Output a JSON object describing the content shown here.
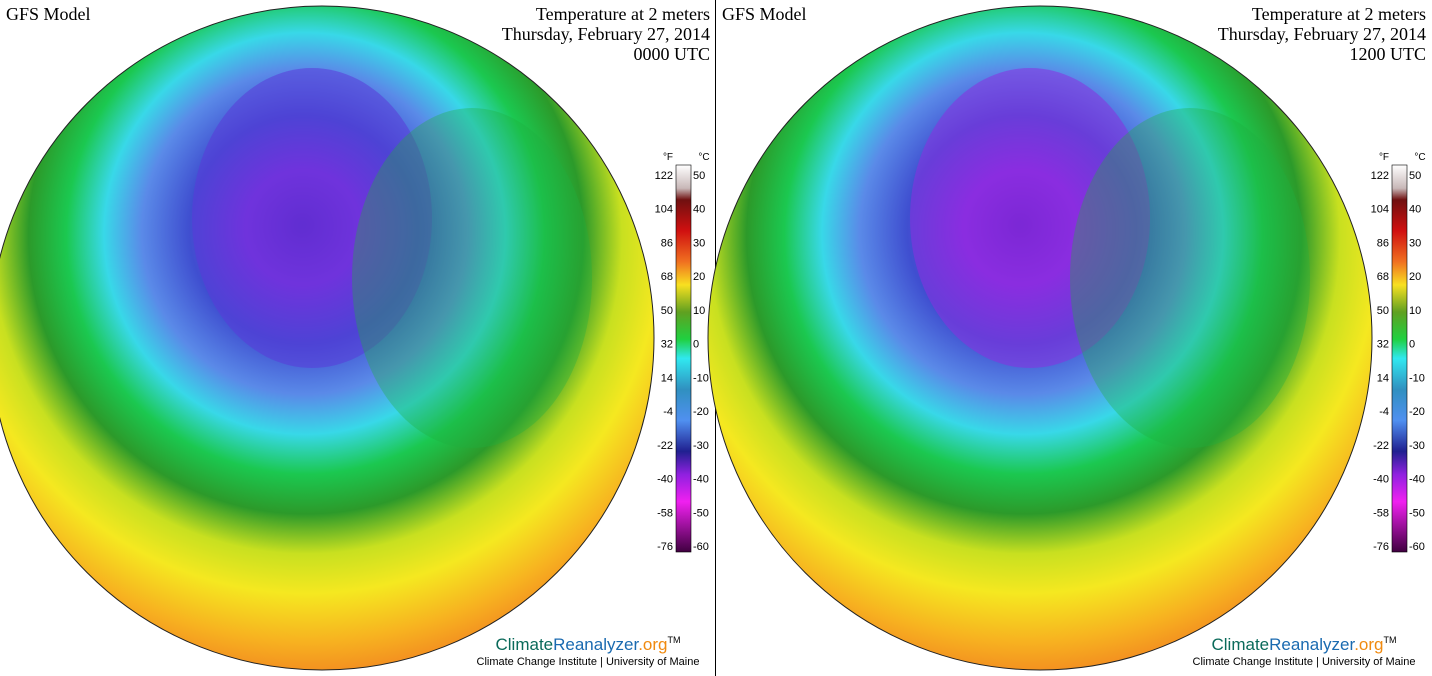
{
  "panels": [
    {
      "model": "GFS Model",
      "title": [
        "Temperature at 2 meters",
        "Thursday, February 27, 2014",
        "0000 UTC"
      ],
      "legend": {
        "unit_f": "°F",
        "unit_c": "°C",
        "ticks_f": [
          122,
          104,
          86,
          68,
          50,
          32,
          14,
          -4,
          -22,
          -40,
          -58,
          -76
        ],
        "ticks_c": [
          50,
          40,
          30,
          20,
          10,
          0,
          -10,
          -20,
          -30,
          -40,
          -50,
          -60
        ]
      },
      "brand": {
        "parts": [
          "Climate",
          "Reanalyzer",
          ".org",
          "TM"
        ],
        "subtitle": "Climate Change Institute | University of Maine"
      }
    },
    {
      "model": "GFS Model",
      "title": [
        "Temperature at 2 meters",
        "Thursday, February 27, 2014",
        "1200 UTC"
      ],
      "legend": {
        "unit_f": "°F",
        "unit_c": "°C",
        "ticks_f": [
          122,
          104,
          86,
          68,
          50,
          32,
          14,
          -4,
          -22,
          -40,
          -58,
          -76
        ],
        "ticks_c": [
          50,
          40,
          30,
          20,
          10,
          0,
          -10,
          -20,
          -30,
          -40,
          -50,
          -60
        ]
      },
      "brand": {
        "parts": [
          "Climate",
          "Reanalyzer",
          ".org",
          "TM"
        ],
        "subtitle": "Climate Change Institute | University of Maine"
      }
    }
  ]
}
